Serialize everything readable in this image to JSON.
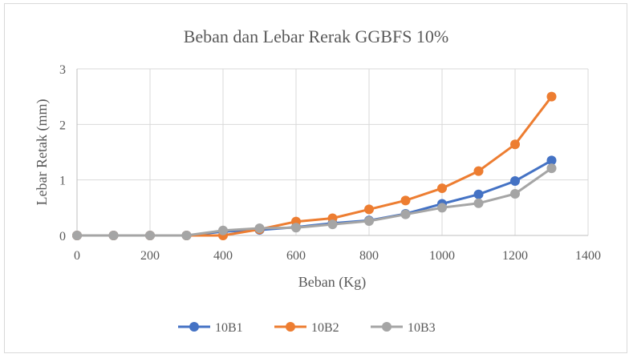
{
  "chart_data": {
    "type": "line",
    "title": "Beban dan Lebar Rerak GGBFS 10%",
    "xlabel": "Beban (Kg)",
    "ylabel": "Lebar Retak (mm)",
    "xlim": [
      0,
      1400
    ],
    "ylim": [
      0,
      3
    ],
    "x_ticks": [
      "0",
      "200",
      "400",
      "600",
      "800",
      "1000",
      "1200",
      "1400"
    ],
    "y_ticks": [
      "0",
      "1",
      "2",
      "3"
    ],
    "grid": "vertical and horizontal major gridlines",
    "legend_position": "bottom",
    "x": [
      0,
      100,
      200,
      300,
      400,
      500,
      600,
      700,
      800,
      900,
      1000,
      1100,
      1200,
      1300
    ],
    "series": [
      {
        "name": "10B1",
        "color": "#4472c4",
        "values": [
          0,
          0,
          0,
          0,
          0.07,
          0.1,
          0.15,
          0.22,
          0.27,
          0.39,
          0.57,
          0.74,
          0.98,
          1.35
        ]
      },
      {
        "name": "10B2",
        "color": "#ed7d31",
        "values": [
          0,
          0,
          0,
          0,
          0,
          0.11,
          0.25,
          0.31,
          0.47,
          0.63,
          0.85,
          1.16,
          1.64,
          2.5
        ]
      },
      {
        "name": "10B3",
        "color": "#a5a5a5",
        "values": [
          0,
          0,
          0,
          0,
          0.09,
          0.13,
          0.14,
          0.2,
          0.26,
          0.38,
          0.5,
          0.58,
          0.75,
          1.21
        ]
      }
    ]
  }
}
